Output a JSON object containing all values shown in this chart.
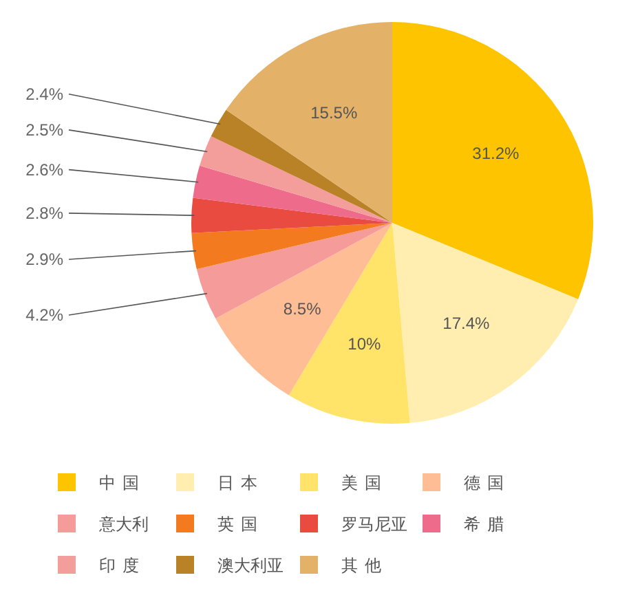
{
  "chart_data": {
    "type": "pie",
    "categories": [
      "中国",
      "日本",
      "美国",
      "德国",
      "意大利",
      "英国",
      "罗马尼亚",
      "希腊",
      "印度",
      "澳大利亚",
      "其他"
    ],
    "values": [
      31.2,
      17.4,
      10,
      8.5,
      4.2,
      2.9,
      2.8,
      2.6,
      2.5,
      2.4,
      15.5
    ],
    "colors": [
      "#fec400",
      "#ffeeb0",
      "#ffe469",
      "#ffbd96",
      "#f59c9a",
      "#f47a20",
      "#e94b40",
      "#ee6b8c",
      "#f49e9b",
      "#b98227",
      "#e3b167"
    ],
    "value_labels": [
      "31.2%",
      "17.4%",
      "10%",
      "8.5%",
      "4.2%",
      "2.9%",
      "2.8%",
      "2.6%",
      "2.5%",
      "2.4%",
      "15.5%"
    ],
    "legend": "bottom"
  }
}
